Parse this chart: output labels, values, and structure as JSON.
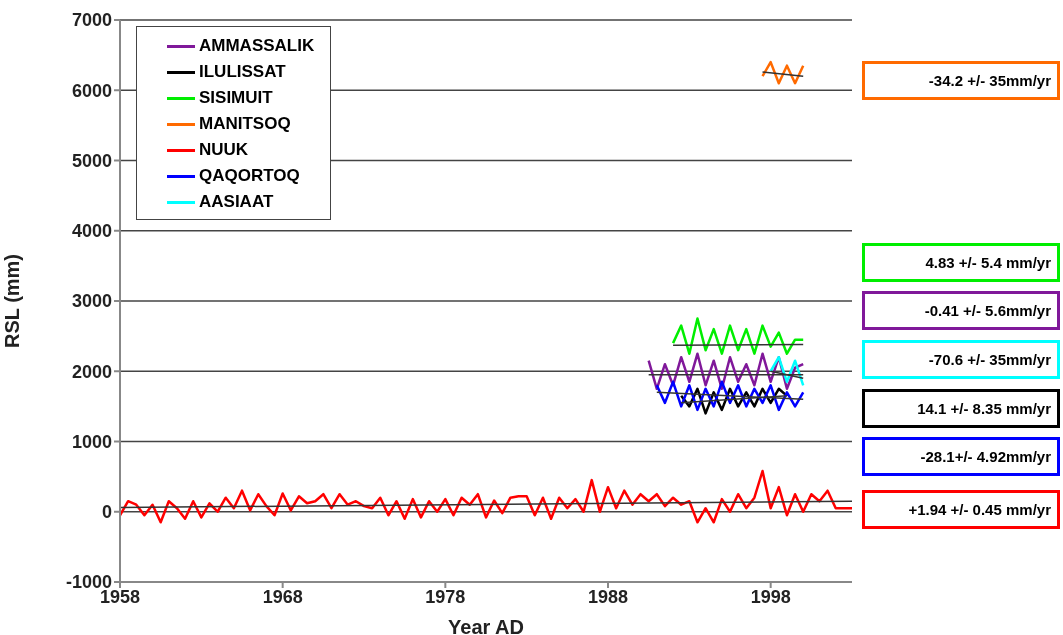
{
  "chart_data": {
    "type": "line",
    "xlabel": "Year AD",
    "ylabel": "RSL  (mm)",
    "xlim": [
      1958,
      2003
    ],
    "xticks": [
      1958,
      1968,
      1978,
      1988,
      1998
    ],
    "ylim": [
      -1000,
      7000
    ],
    "yticks": [
      -1000,
      0,
      1000,
      2000,
      3000,
      4000,
      5000,
      6000,
      7000
    ],
    "grid": "y",
    "legend": "top left",
    "marker": "none",
    "line_style": "solid",
    "series": [
      {
        "name": "AMMASSALIK",
        "color": "#80189a",
        "x": [
          1990.5,
          1991,
          1991.5,
          1992,
          1992.5,
          1993,
          1993.5,
          1994,
          1994.5,
          1995,
          1995.5,
          1996,
          1996.5,
          1997,
          1997.5,
          1998,
          1998.5,
          1999,
          1999.5,
          2000
        ],
        "values": [
          2150,
          1750,
          2100,
          1800,
          2200,
          1850,
          2250,
          1800,
          2150,
          1750,
          2200,
          1850,
          2100,
          1800,
          2250,
          1850,
          2200,
          1750,
          2050,
          2100
        ]
      },
      {
        "name": "ILULISSAT",
        "color": "#000000",
        "x": [
          1992.5,
          1993,
          1993.5,
          1994,
          1994.5,
          1995,
          1995.5,
          1996,
          1996.5,
          1997,
          1997.5,
          1998,
          1998.5,
          1999
        ],
        "values": [
          1650,
          1500,
          1750,
          1400,
          1700,
          1450,
          1750,
          1500,
          1700,
          1500,
          1750,
          1550,
          1750,
          1650
        ]
      },
      {
        "name": "SISIMUIT",
        "color": "#00ee00",
        "x": [
          1992,
          1992.5,
          1993,
          1993.5,
          1994,
          1994.5,
          1995,
          1995.5,
          1996,
          1996.5,
          1997,
          1997.5,
          1998,
          1998.5,
          1999,
          1999.5,
          2000
        ],
        "values": [
          2400,
          2650,
          2250,
          2750,
          2300,
          2600,
          2250,
          2650,
          2300,
          2600,
          2250,
          2650,
          2350,
          2550,
          2250,
          2450,
          2450
        ]
      },
      {
        "name": "MANITSOQ",
        "color": "#ff6a00",
        "x": [
          1997.5,
          1998,
          1998.5,
          1999,
          1999.5,
          2000
        ],
        "values": [
          6200,
          6400,
          6100,
          6350,
          6100,
          6350
        ]
      },
      {
        "name": "NUUK",
        "color": "#ff0000",
        "x": [
          1958,
          1958.5,
          1959,
          1959.5,
          1960,
          1960.5,
          1961,
          1961.5,
          1962,
          1962.5,
          1963,
          1963.5,
          1964,
          1964.5,
          1965,
          1965.5,
          1966,
          1966.5,
          1967,
          1967.5,
          1968,
          1968.5,
          1969,
          1969.5,
          1970,
          1970.5,
          1971,
          1971.5,
          1972,
          1972.5,
          1973,
          1973.5,
          1974,
          1974.5,
          1975,
          1975.5,
          1976,
          1976.5,
          1977,
          1977.5,
          1978,
          1978.5,
          1979,
          1979.5,
          1980,
          1980.5,
          1981,
          1981.5,
          1982,
          1982.5,
          1983,
          1983.5,
          1984,
          1984.5,
          1985,
          1985.5,
          1986,
          1986.5,
          1987,
          1987.5,
          1988,
          1988.5,
          1989,
          1989.5,
          1990,
          1990.5,
          1991,
          1991.5,
          1992,
          1992.5,
          1993,
          1993.5,
          1994,
          1994.5,
          1995,
          1995.5,
          1996,
          1996.5,
          1997,
          1997.5,
          1998,
          1998.5,
          1999,
          1999.5,
          2000,
          2000.5,
          2001,
          2001.5,
          2002,
          2002.5,
          2003
        ],
        "values": [
          -50,
          150,
          100,
          -50,
          100,
          -150,
          150,
          50,
          -100,
          150,
          -80,
          120,
          0,
          200,
          50,
          300,
          20,
          250,
          80,
          -50,
          260,
          20,
          220,
          120,
          150,
          250,
          50,
          250,
          100,
          150,
          80,
          50,
          200,
          -50,
          150,
          -100,
          180,
          -80,
          150,
          0,
          180,
          -50,
          200,
          100,
          250,
          -80,
          160,
          -20,
          200,
          220,
          220,
          -50,
          200,
          -100,
          200,
          50,
          180,
          0,
          450,
          0,
          350,
          50,
          300,
          100,
          250,
          150,
          250,
          80,
          200,
          100,
          150,
          -150,
          50,
          -150,
          180,
          0,
          250,
          50,
          200,
          580,
          50,
          350,
          -50,
          250,
          0,
          250,
          150,
          300,
          50,
          50,
          50
        ]
      },
      {
        "name": "QAQORTOQ",
        "color": "#0000ff",
        "x": [
          1991,
          1991.5,
          1992,
          1992.5,
          1993,
          1993.5,
          1994,
          1994.5,
          1995,
          1995.5,
          1996,
          1996.5,
          1997,
          1997.5,
          1998,
          1998.5,
          1999,
          1999.5,
          2000
        ],
        "values": [
          1800,
          1550,
          1850,
          1500,
          1800,
          1450,
          1750,
          1500,
          1850,
          1550,
          1800,
          1500,
          1750,
          1550,
          1800,
          1450,
          1700,
          1500,
          1700
        ]
      },
      {
        "name": "AASIAAT",
        "color": "#00ffff",
        "x": [
          1998,
          1998.5,
          1999,
          1999.5,
          2000
        ],
        "values": [
          2000,
          2200,
          1850,
          2150,
          1800
        ]
      },
      {
        "type": "line",
        "color": "#333333",
        "x": [
          1958,
          2003
        ],
        "values": [
          60,
          150
        ]
      },
      {
        "type": "line",
        "color": "#333333",
        "x": [
          1992,
          2000
        ],
        "values": [
          2370,
          2380
        ]
      },
      {
        "type": "line",
        "color": "#333333",
        "x": [
          1990.5,
          2000
        ],
        "values": [
          1950,
          1950
        ]
      },
      {
        "type": "line",
        "color": "#333333",
        "x": [
          1992.5,
          1999
        ],
        "values": [
          1550,
          1650
        ]
      },
      {
        "type": "line",
        "color": "#333333",
        "x": [
          1991,
          2000
        ],
        "values": [
          1700,
          1600
        ]
      },
      {
        "type": "line",
        "color": "#333333",
        "x": [
          1998,
          2000
        ],
        "values": [
          2000,
          1900
        ]
      },
      {
        "type": "line",
        "color": "#333333",
        "x": [
          1997.5,
          2000
        ],
        "values": [
          6260,
          6200
        ]
      }
    ],
    "annotations": [
      "-0.41 +/- 5.6mm/yr",
      "14.1 +/- 8.35 mm/yr",
      "4.83 +/- 5.4 mm/yr",
      "-34.2 +/- 35mm/yr",
      "+1.94 +/- 0.45 mm/yr",
      "-28.1+/- 4.92mm/yr",
      "-70.6 +/- 35mm/yr"
    ]
  }
}
